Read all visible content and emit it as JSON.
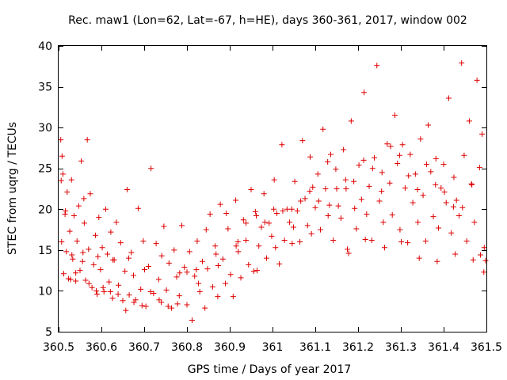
{
  "chart_data": {
    "type": "scatter",
    "title": "Rec. maw1 (Lon=62, Lat=-67, h=HE), days 360-361, 2017, window 002",
    "xlabel": "GPS time / Days of year 2017",
    "ylabel": "STEC from uqrg / TECUs",
    "xlim": [
      360.5,
      361.5
    ],
    "ylim": [
      5,
      40
    ],
    "xticks": [
      "360.5",
      "360.6",
      "360.7",
      "360.8",
      "360.9",
      "361",
      "361.1",
      "361.2",
      "361.3",
      "361.4",
      "361.5"
    ],
    "yticks": [
      "5",
      "10",
      "15",
      "20",
      "25",
      "30",
      "35",
      "40"
    ],
    "grid": false,
    "marker": "plus",
    "color": "#dd0000",
    "series": [
      {
        "name": "",
        "x": [
          360.505,
          360.507,
          360.51,
          360.512,
          360.515,
          360.518,
          360.52,
          360.523,
          360.526,
          360.53,
          360.533,
          360.536,
          360.54,
          360.543,
          360.547,
          360.55,
          360.553,
          360.557,
          360.56,
          360.563,
          360.567,
          360.57,
          360.574,
          360.578,
          360.582,
          360.586,
          360.59,
          360.594,
          360.598,
          360.602,
          360.606,
          360.61,
          360.614,
          360.618,
          360.622,
          360.626,
          360.63,
          360.635,
          360.64,
          360.645,
          360.65,
          360.655,
          360.66,
          360.665,
          360.67,
          360.675,
          360.68,
          360.686,
          360.692,
          360.698,
          360.704,
          360.71,
          360.716,
          360.722,
          360.728,
          360.734,
          360.74,
          360.746,
          360.752,
          360.758,
          360.764,
          360.77,
          360.776,
          360.782,
          360.788,
          360.794,
          360.8,
          360.806,
          360.812,
          360.818,
          360.824,
          360.83,
          360.836,
          360.842,
          360.848,
          360.854,
          360.86,
          360.866,
          360.872,
          360.878,
          360.884,
          360.89,
          360.896,
          360.902,
          360.908,
          360.914,
          360.92,
          360.926,
          360.932,
          360.938,
          360.944,
          360.95,
          360.956,
          360.962,
          360.968,
          360.974,
          360.98,
          360.986,
          360.992,
          360.998,
          361.004,
          361.01,
          361.016,
          361.022,
          361.028,
          361.034,
          361.04,
          361.046,
          361.052,
          361.058,
          361.064,
          361.07,
          361.076,
          361.082,
          361.088,
          361.094,
          361.1,
          361.106,
          361.112,
          361.118,
          361.124,
          361.13,
          361.136,
          361.142,
          361.148,
          361.154,
          361.16,
          361.166,
          361.172,
          361.178,
          361.184,
          361.19,
          361.196,
          361.202,
          361.208,
          361.214,
          361.22,
          361.226,
          361.232,
          361.238,
          361.244,
          361.25,
          361.256,
          361.262,
          361.268,
          361.274,
          361.28,
          361.286,
          361.292,
          361.298,
          361.304,
          361.31,
          361.316,
          361.322,
          361.328,
          361.334,
          361.34,
          361.346,
          361.352,
          361.358,
          361.364,
          361.37,
          361.376,
          361.382,
          361.388,
          361.394,
          361.4,
          361.406,
          361.412,
          361.418,
          361.424,
          361.43,
          361.436,
          361.442,
          361.448,
          361.454,
          361.46,
          361.466,
          361.472,
          361.478,
          361.484,
          361.49,
          361.495,
          361.498,
          360.506,
          360.516,
          360.528,
          360.54,
          360.556,
          360.571,
          360.588,
          360.604,
          360.621,
          360.639,
          360.657,
          360.676,
          360.695,
          360.715,
          360.735,
          360.756,
          360.778,
          360.8,
          360.822,
          360.845,
          360.868,
          360.892,
          360.915,
          360.938,
          360.96,
          360.982,
          361.003,
          361.024,
          361.045,
          361.066,
          361.087,
          361.108,
          361.129,
          361.15,
          361.171,
          361.192,
          361.213,
          361.234,
          361.255,
          361.276,
          361.297,
          361.318,
          361.339,
          361.36,
          361.381,
          361.402,
          361.423,
          361.444,
          361.465,
          361.486,
          360.508,
          360.531,
          360.559,
          360.592,
          360.627,
          360.664,
          360.701,
          360.741,
          360.783,
          360.827,
          360.873,
          360.919,
          360.964,
          361.007,
          361.049,
          361.091,
          361.133,
          361.175,
          361.217,
          361.259,
          361.301,
          361.343,
          361.385,
          361.427,
          361.469,
          361.494
        ],
        "y": [
          28.5,
          16.0,
          24.3,
          12.1,
          19.4,
          14.8,
          22.1,
          11.5,
          17.3,
          23.6,
          13.9,
          19.2,
          11.2,
          16.1,
          20.4,
          12.5,
          25.9,
          14.7,
          18.3,
          11.3,
          28.5,
          15.1,
          21.9,
          10.4,
          13.2,
          16.8,
          9.6,
          19.0,
          12.6,
          15.3,
          9.9,
          20.0,
          14.5,
          11.1,
          17.2,
          9.1,
          13.8,
          18.4,
          10.7,
          15.9,
          8.8,
          12.4,
          22.4,
          9.5,
          14.7,
          11.9,
          8.9,
          20.1,
          10.2,
          16.1,
          8.1,
          13.0,
          25.0,
          9.7,
          15.8,
          11.4,
          8.6,
          17.9,
          10.1,
          13.4,
          7.9,
          15.0,
          11.7,
          9.4,
          18.0,
          12.9,
          8.3,
          14.8,
          6.4,
          11.8,
          16.1,
          9.9,
          13.6,
          7.9,
          12.7,
          19.4,
          10.5,
          15.5,
          9.3,
          20.6,
          13.9,
          10.9,
          17.6,
          12.0,
          9.3,
          21.1,
          14.8,
          11.6,
          18.7,
          16.2,
          13.2,
          22.4,
          12.4,
          19.2,
          15.5,
          17.8,
          21.9,
          14.0,
          18.3,
          16.7,
          23.6,
          19.5,
          13.3,
          27.9,
          16.2,
          20.0,
          18.4,
          15.8,
          23.4,
          19.8,
          16.0,
          28.4,
          21.3,
          18.0,
          26.4,
          22.7,
          20.2,
          24.3,
          17.5,
          29.8,
          22.5,
          19.2,
          26.7,
          16.2,
          24.9,
          20.4,
          18.9,
          27.3,
          22.5,
          14.6,
          30.8,
          23.4,
          17.6,
          25.4,
          21.2,
          34.3,
          19.4,
          22.8,
          16.2,
          26.3,
          37.6,
          21.0,
          24.5,
          15.3,
          28.0,
          23.2,
          19.3,
          31.5,
          25.6,
          17.5,
          27.9,
          22.6,
          15.9,
          26.7,
          20.8,
          24.3,
          18.4,
          28.6,
          21.7,
          16.1,
          30.3,
          24.6,
          19.1,
          26.2,
          17.7,
          22.6,
          25.5,
          20.8,
          33.6,
          17.1,
          23.9,
          21.1,
          19.2,
          37.9,
          26.6,
          16.1,
          30.8,
          23.0,
          18.4,
          35.8,
          25.1,
          29.2,
          15.3,
          13.7,
          23.5,
          19.8,
          11.4,
          12.2,
          13.6,
          10.9,
          10.0,
          10.4,
          9.9,
          9.6,
          7.6,
          8.6,
          8.2,
          9.9,
          8.9,
          8.1,
          8.4,
          12.3,
          12.6,
          17.5,
          14.5,
          19.5,
          15.5,
          18.3,
          19.7,
          18.4,
          20.0,
          19.8,
          20.0,
          21.0,
          22.2,
          21.0,
          25.8,
          22.5,
          23.6,
          20.1,
          26.0,
          25.0,
          22.2,
          27.7,
          26.6,
          24.1,
          22.4,
          25.5,
          23.0,
          22.1,
          20.3,
          20.2,
          23.1,
          14.4,
          26.5,
          14.4,
          21.3,
          14.2,
          13.8,
          14.0,
          12.6,
          14.3,
          12.2,
          10.9,
          13.1,
          16.0,
          12.5,
          15.3,
          17.8,
          17.0,
          20.5,
          15.1,
          16.3,
          18.4,
          16.0,
          14.0,
          13.6,
          14.5,
          13.8,
          12.3
        ]
      }
    ]
  }
}
